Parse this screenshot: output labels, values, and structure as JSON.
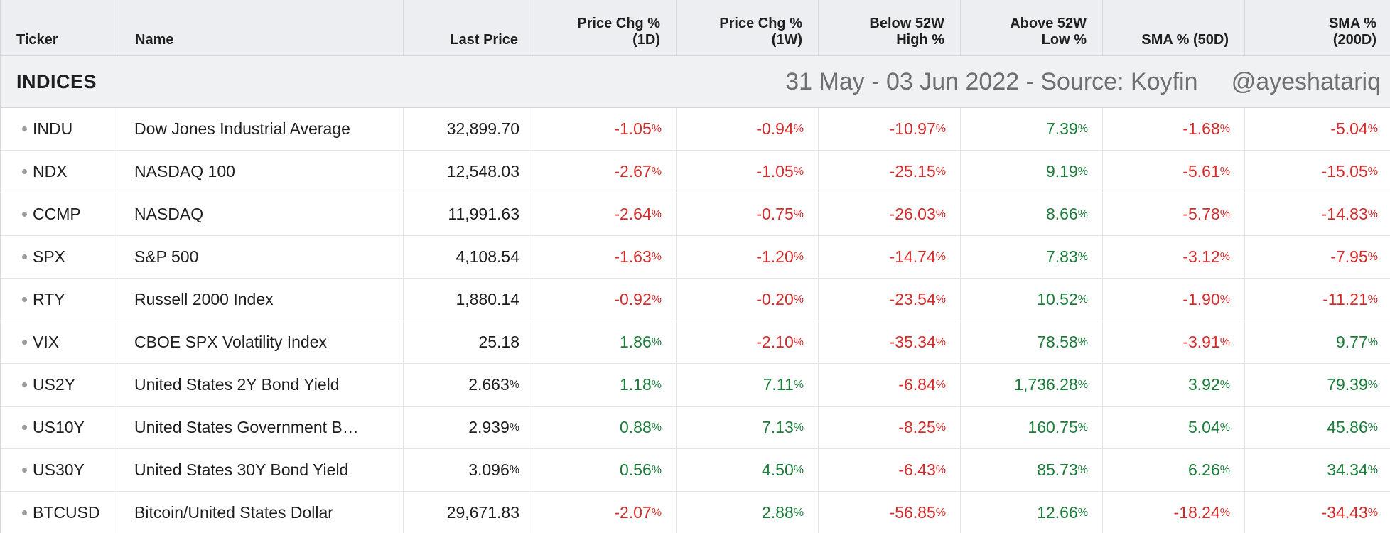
{
  "columns": [
    {
      "label": "Ticker",
      "align": "left"
    },
    {
      "label": "Name",
      "align": "left"
    },
    {
      "label": "Last Price",
      "align": "right"
    },
    {
      "label": "Price Chg %\n(1D)",
      "line1": "Price Chg %",
      "line2": "(1D)",
      "align": "right"
    },
    {
      "label": "Price Chg %\n(1W)",
      "line1": "Price Chg %",
      "line2": "(1W)",
      "align": "right"
    },
    {
      "label": "Below 52W\nHigh %",
      "line1": "Below 52W",
      "line2": "High %",
      "align": "right"
    },
    {
      "label": "Above 52W\nLow %",
      "line1": "Above 52W",
      "line2": "Low %",
      "align": "right"
    },
    {
      "label": "SMA % (50D)",
      "align": "right"
    },
    {
      "label": "SMA %\n(200D)",
      "line1": "SMA %",
      "line2": "(200D)",
      "align": "right"
    }
  ],
  "group": {
    "title": "INDICES",
    "note": "31 May - 03 Jun 2022 - Source: Koyfin     @ayeshatariq"
  },
  "colors": {
    "negative": "#d52b2b",
    "positive": "#1b7d3a",
    "header_bg": "#eceef1",
    "group_bg": "#f0f1f3",
    "bullet": "#9a9ca0"
  },
  "rows": [
    {
      "ticker": "INDU",
      "name": "Dow Jones Industrial Average",
      "last": "32,899.70",
      "last_pct": false,
      "d1": "-1.05",
      "w1": "-0.94",
      "hi52": "-10.97",
      "lo52": "7.39",
      "sma50": "-1.68",
      "sma200": "-5.04"
    },
    {
      "ticker": "NDX",
      "name": "NASDAQ 100",
      "last": "12,548.03",
      "last_pct": false,
      "d1": "-2.67",
      "w1": "-1.05",
      "hi52": "-25.15",
      "lo52": "9.19",
      "sma50": "-5.61",
      "sma200": "-15.05"
    },
    {
      "ticker": "CCMP",
      "name": "NASDAQ",
      "last": "11,991.63",
      "last_pct": false,
      "d1": "-2.64",
      "w1": "-0.75",
      "hi52": "-26.03",
      "lo52": "8.66",
      "sma50": "-5.78",
      "sma200": "-14.83"
    },
    {
      "ticker": "SPX",
      "name": "S&P 500",
      "last": "4,108.54",
      "last_pct": false,
      "d1": "-1.63",
      "w1": "-1.20",
      "hi52": "-14.74",
      "lo52": "7.83",
      "sma50": "-3.12",
      "sma200": "-7.95"
    },
    {
      "ticker": "RTY",
      "name": "Russell 2000 Index",
      "last": "1,880.14",
      "last_pct": false,
      "d1": "-0.92",
      "w1": "-0.20",
      "hi52": "-23.54",
      "lo52": "10.52",
      "sma50": "-1.90",
      "sma200": "-11.21"
    },
    {
      "ticker": "VIX",
      "name": "CBOE SPX Volatility Index",
      "last": "25.18",
      "last_pct": false,
      "d1": "1.86",
      "w1": "-2.10",
      "hi52": "-35.34",
      "lo52": "78.58",
      "sma50": "-3.91",
      "sma200": "9.77"
    },
    {
      "ticker": "US2Y",
      "name": "United States 2Y Bond Yield",
      "last": "2.663",
      "last_pct": true,
      "d1": "1.18",
      "w1": "7.11",
      "hi52": "-6.84",
      "lo52": "1,736.28",
      "sma50": "3.92",
      "sma200": "79.39"
    },
    {
      "ticker": "US10Y",
      "name": "United States Government B…",
      "last": "2.939",
      "last_pct": true,
      "d1": "0.88",
      "w1": "7.13",
      "hi52": "-8.25",
      "lo52": "160.75",
      "sma50": "5.04",
      "sma200": "45.86"
    },
    {
      "ticker": "US30Y",
      "name": "United States 30Y Bond Yield",
      "last": "3.096",
      "last_pct": true,
      "d1": "0.56",
      "w1": "4.50",
      "hi52": "-6.43",
      "lo52": "85.73",
      "sma50": "6.26",
      "sma200": "34.34"
    },
    {
      "ticker": "BTCUSD",
      "name": "Bitcoin/United States Dollar",
      "last": "29,671.83",
      "last_pct": false,
      "d1": "-2.07",
      "w1": "2.88",
      "hi52": "-56.85",
      "lo52": "12.66",
      "sma50": "-18.24",
      "sma200": "-34.43"
    }
  ]
}
